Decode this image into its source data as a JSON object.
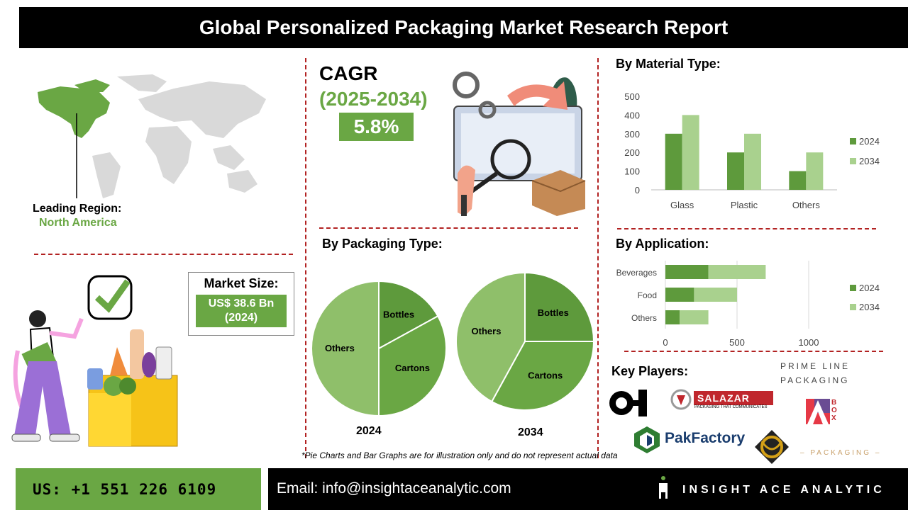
{
  "title": "Global Personalized Packaging Market Research Report",
  "cagr": {
    "label": "CAGR",
    "years": "(2025-2034)",
    "value": "5.8%"
  },
  "region": {
    "label": "Leading Region:",
    "value": "North America"
  },
  "market_size": {
    "label": "Market Size:",
    "value_line1": "US$ 38.6 Bn",
    "value_line2": "(2024)"
  },
  "sections": {
    "material": "By Material Type:",
    "packaging": "By Packaging Type:",
    "application": "By Application:",
    "key_players": "Key Players:"
  },
  "note": "*Pie Charts and Bar Graphs are for illustration only and do not represent actual data",
  "footer": {
    "phone": "US: +1 551 226 6109",
    "email": "Email: info@insightaceanalytic.com",
    "brand": "INSIGHT ACE ANALYTIC"
  },
  "logos": {
    "oi": "O-I",
    "salazar": "SALAZAR",
    "salazar_tag": "PACKAGING THAT COMMUNICATES",
    "primeline_1": "PRIME LINE",
    "primeline_2": "PACKAGING",
    "abox": "BOX",
    "pakfactory": "PakFactory",
    "packaging_small": "– PACKAGING –"
  },
  "colors": {
    "dark_green": "#5e9a3c",
    "light_green": "#a9d18e",
    "mid_green": "#6aa744",
    "pie_light": "#8fbf6a",
    "pie_dark": "#5e9a3c",
    "pie_mid": "#6aa744"
  },
  "chart_data": [
    {
      "type": "bar",
      "title": "By Material Type:",
      "categories": [
        "Glass",
        "Plastic",
        "Others"
      ],
      "series": [
        {
          "name": "2024",
          "values": [
            300,
            200,
            100
          ]
        },
        {
          "name": "2034",
          "values": [
            400,
            300,
            200
          ]
        }
      ],
      "ylim": [
        0,
        500
      ],
      "yticks": [
        0,
        100,
        200,
        300,
        400,
        500
      ],
      "legend": "right"
    },
    {
      "type": "bar",
      "orientation": "horizontal",
      "stacked": true,
      "title": "By Application:",
      "categories": [
        "Beverages",
        "Food",
        "Others"
      ],
      "series": [
        {
          "name": "2024",
          "values": [
            300,
            200,
            100
          ]
        },
        {
          "name": "2034",
          "values": [
            400,
            300,
            200
          ]
        }
      ],
      "xlim": [
        0,
        1000
      ],
      "xticks": [
        0,
        500,
        1000
      ],
      "legend": "right"
    },
    {
      "type": "pie",
      "title": "2024",
      "labels": [
        "Bottles",
        "Cartons",
        "Others"
      ],
      "values": [
        17,
        33,
        50
      ]
    },
    {
      "type": "pie",
      "title": "2034",
      "labels": [
        "Bottles",
        "Cartons",
        "Others"
      ],
      "values": [
        25,
        33,
        42
      ]
    }
  ]
}
